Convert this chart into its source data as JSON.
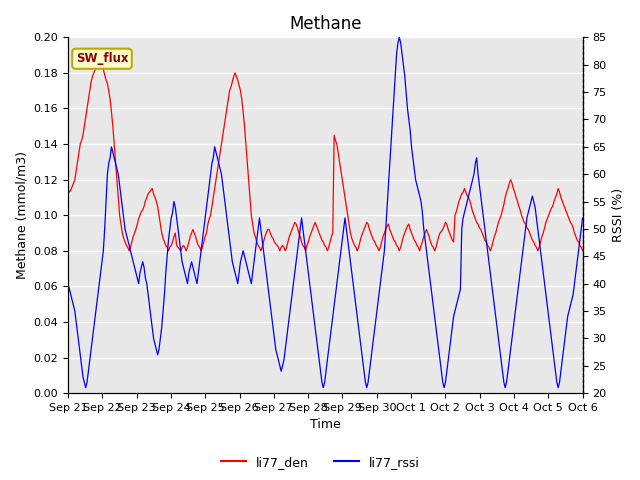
{
  "title": "Methane",
  "ylabel_left": "Methane (mmol/m3)",
  "ylabel_right": "RSSI (%)",
  "xlabel": "Time",
  "ylim_left": [
    0.0,
    0.2
  ],
  "ylim_right": [
    20,
    85
  ],
  "yticks_left": [
    0.0,
    0.02,
    0.04,
    0.06,
    0.08,
    0.1,
    0.12,
    0.14,
    0.16,
    0.18,
    0.2
  ],
  "yticks_right": [
    20,
    25,
    30,
    35,
    40,
    45,
    50,
    55,
    60,
    65,
    70,
    75,
    80,
    85
  ],
  "xtick_labels": [
    "Sep 21",
    "Sep 22",
    "Sep 23",
    "Sep 24",
    "Sep 25",
    "Sep 26",
    "Sep 27",
    "Sep 28",
    "Sep 29",
    "Sep 30",
    "Oct 1",
    "Oct 2",
    "Oct 3",
    "Oct 4",
    "Oct 5",
    "Oct 6"
  ],
  "annotation_text": "SW_flux",
  "annotation_facecolor": "#ffffcc",
  "annotation_edgecolor": "#bbaa00",
  "background_color": "#e8e8e8",
  "grid_color": "white",
  "title_fontsize": 12,
  "label_fontsize": 9,
  "tick_fontsize": 8,
  "den_y": [
    0.115,
    0.113,
    0.114,
    0.116,
    0.118,
    0.12,
    0.125,
    0.13,
    0.135,
    0.14,
    0.142,
    0.145,
    0.15,
    0.155,
    0.16,
    0.165,
    0.17,
    0.175,
    0.178,
    0.18,
    0.182,
    0.19,
    0.192,
    0.191,
    0.188,
    0.185,
    0.182,
    0.179,
    0.176,
    0.174,
    0.17,
    0.165,
    0.158,
    0.15,
    0.14,
    0.13,
    0.12,
    0.11,
    0.1,
    0.095,
    0.09,
    0.087,
    0.085,
    0.083,
    0.082,
    0.08,
    0.082,
    0.085,
    0.088,
    0.09,
    0.092,
    0.095,
    0.098,
    0.1,
    0.102,
    0.103,
    0.105,
    0.108,
    0.11,
    0.112,
    0.113,
    0.114,
    0.115,
    0.112,
    0.11,
    0.108,
    0.105,
    0.1,
    0.095,
    0.09,
    0.087,
    0.085,
    0.083,
    0.082,
    0.08,
    0.082,
    0.083,
    0.085,
    0.088,
    0.09,
    0.083,
    0.082,
    0.081,
    0.08,
    0.082,
    0.083,
    0.082,
    0.08,
    0.082,
    0.085,
    0.088,
    0.09,
    0.092,
    0.09,
    0.088,
    0.085,
    0.083,
    0.082,
    0.08,
    0.082,
    0.085,
    0.088,
    0.09,
    0.095,
    0.098,
    0.1,
    0.105,
    0.11,
    0.115,
    0.12,
    0.125,
    0.13,
    0.135,
    0.14,
    0.145,
    0.15,
    0.155,
    0.16,
    0.165,
    0.17,
    0.172,
    0.175,
    0.178,
    0.18,
    0.178,
    0.176,
    0.173,
    0.17,
    0.165,
    0.158,
    0.15,
    0.14,
    0.13,
    0.12,
    0.11,
    0.1,
    0.095,
    0.09,
    0.088,
    0.085,
    0.083,
    0.082,
    0.08,
    0.082,
    0.085,
    0.088,
    0.09,
    0.092,
    0.092,
    0.09,
    0.088,
    0.087,
    0.085,
    0.084,
    0.083,
    0.082,
    0.08,
    0.082,
    0.083,
    0.082,
    0.08,
    0.082,
    0.085,
    0.088,
    0.09,
    0.092,
    0.094,
    0.096,
    0.095,
    0.093,
    0.09,
    0.088,
    0.085,
    0.083,
    0.082,
    0.08,
    0.083,
    0.085,
    0.088,
    0.09,
    0.092,
    0.094,
    0.096,
    0.094,
    0.092,
    0.09,
    0.088,
    0.086,
    0.085,
    0.083,
    0.082,
    0.08,
    0.082,
    0.085,
    0.088,
    0.09,
    0.145,
    0.142,
    0.14,
    0.135,
    0.13,
    0.125,
    0.12,
    0.115,
    0.11,
    0.105,
    0.1,
    0.095,
    0.09,
    0.087,
    0.085,
    0.083,
    0.082,
    0.08,
    0.082,
    0.085,
    0.088,
    0.09,
    0.092,
    0.094,
    0.096,
    0.095,
    0.092,
    0.09,
    0.088,
    0.086,
    0.085,
    0.083,
    0.082,
    0.08,
    0.082,
    0.085,
    0.088,
    0.09,
    0.092,
    0.094,
    0.095,
    0.092,
    0.09,
    0.088,
    0.086,
    0.085,
    0.083,
    0.082,
    0.08,
    0.082,
    0.085,
    0.088,
    0.09,
    0.092,
    0.094,
    0.095,
    0.092,
    0.09,
    0.088,
    0.086,
    0.085,
    0.083,
    0.082,
    0.08,
    0.083,
    0.085,
    0.088,
    0.09,
    0.092,
    0.09,
    0.088,
    0.085,
    0.083,
    0.082,
    0.08,
    0.082,
    0.085,
    0.088,
    0.09,
    0.091,
    0.092,
    0.094,
    0.096,
    0.095,
    0.092,
    0.09,
    0.088,
    0.086,
    0.085,
    0.1,
    0.102,
    0.105,
    0.108,
    0.11,
    0.112,
    0.113,
    0.115,
    0.113,
    0.111,
    0.11,
    0.108,
    0.105,
    0.102,
    0.1,
    0.098,
    0.096,
    0.095,
    0.093,
    0.092,
    0.09,
    0.088,
    0.086,
    0.085,
    0.083,
    0.082,
    0.08,
    0.082,
    0.085,
    0.088,
    0.09,
    0.093,
    0.096,
    0.098,
    0.1,
    0.103,
    0.106,
    0.11,
    0.113,
    0.115,
    0.118,
    0.12,
    0.118,
    0.115,
    0.113,
    0.11,
    0.108,
    0.105,
    0.103,
    0.1,
    0.098,
    0.096,
    0.095,
    0.093,
    0.092,
    0.09,
    0.088,
    0.086,
    0.085,
    0.083,
    0.082,
    0.08,
    0.082,
    0.085,
    0.088,
    0.09,
    0.093,
    0.096,
    0.098,
    0.1,
    0.102,
    0.104,
    0.105,
    0.108,
    0.11,
    0.112,
    0.115,
    0.113,
    0.11,
    0.108,
    0.106,
    0.104,
    0.102,
    0.1,
    0.098,
    0.096,
    0.095,
    0.093,
    0.09,
    0.088,
    0.086,
    0.085,
    0.083,
    0.082,
    0.08
  ],
  "rssi_y": [
    40,
    39,
    38,
    37,
    36,
    35,
    33,
    31,
    29,
    27,
    25,
    23,
    22,
    21,
    22,
    24,
    26,
    28,
    30,
    32,
    34,
    36,
    38,
    40,
    42,
    44,
    46,
    50,
    55,
    60,
    62,
    63,
    65,
    64,
    63,
    62,
    61,
    60,
    58,
    56,
    54,
    52,
    50,
    49,
    48,
    47,
    46,
    45,
    44,
    43,
    42,
    41,
    40,
    42,
    43,
    44,
    43,
    41,
    40,
    38,
    36,
    34,
    32,
    30,
    29,
    28,
    27,
    28,
    30,
    32,
    35,
    38,
    42,
    45,
    48,
    50,
    52,
    53,
    55,
    54,
    52,
    50,
    48,
    46,
    44,
    43,
    42,
    41,
    40,
    42,
    43,
    44,
    43,
    42,
    41,
    40,
    42,
    44,
    46,
    48,
    50,
    52,
    54,
    56,
    58,
    60,
    62,
    63,
    65,
    64,
    63,
    62,
    61,
    60,
    58,
    56,
    54,
    52,
    50,
    48,
    46,
    44,
    43,
    42,
    41,
    40,
    42,
    44,
    45,
    46,
    45,
    44,
    43,
    42,
    41,
    40,
    42,
    44,
    46,
    48,
    50,
    52,
    50,
    48,
    46,
    44,
    42,
    40,
    38,
    36,
    34,
    32,
    30,
    28,
    27,
    26,
    25,
    24,
    25,
    26,
    28,
    30,
    32,
    34,
    36,
    38,
    40,
    42,
    44,
    46,
    48,
    50,
    52,
    50,
    48,
    46,
    44,
    42,
    40,
    38,
    36,
    34,
    32,
    30,
    28,
    26,
    24,
    22,
    21,
    22,
    24,
    26,
    28,
    30,
    32,
    34,
    36,
    38,
    40,
    42,
    44,
    46,
    48,
    50,
    52,
    50,
    48,
    46,
    44,
    42,
    40,
    38,
    36,
    34,
    32,
    30,
    28,
    26,
    24,
    22,
    21,
    22,
    24,
    26,
    28,
    30,
    32,
    34,
    36,
    38,
    40,
    42,
    44,
    46,
    50,
    54,
    58,
    62,
    66,
    70,
    74,
    78,
    82,
    84,
    85,
    84,
    82,
    80,
    78,
    75,
    72,
    70,
    68,
    65,
    63,
    61,
    59,
    58,
    57,
    56,
    55,
    53,
    50,
    48,
    46,
    44,
    42,
    40,
    38,
    36,
    34,
    32,
    30,
    28,
    26,
    24,
    22,
    21,
    22,
    24,
    26,
    28,
    30,
    32,
    34,
    35,
    36,
    37,
    38,
    39,
    50,
    52,
    53,
    54,
    55,
    56,
    57,
    58,
    59,
    60,
    62,
    63,
    60,
    58,
    56,
    54,
    52,
    50,
    48,
    46,
    44,
    42,
    40,
    38,
    36,
    34,
    32,
    30,
    28,
    26,
    24,
    22,
    21,
    22,
    24,
    26,
    28,
    30,
    32,
    34,
    36,
    38,
    40,
    42,
    44,
    46,
    48,
    50,
    52,
    53,
    54,
    55,
    56,
    55,
    54,
    52,
    50,
    48,
    46,
    44,
    42,
    40,
    38,
    36,
    34,
    32,
    30,
    28,
    26,
    24,
    22,
    21,
    22,
    24,
    26,
    28,
    30,
    32,
    34,
    35,
    36,
    37,
    38,
    40,
    42,
    44,
    46,
    48,
    50,
    52
  ]
}
